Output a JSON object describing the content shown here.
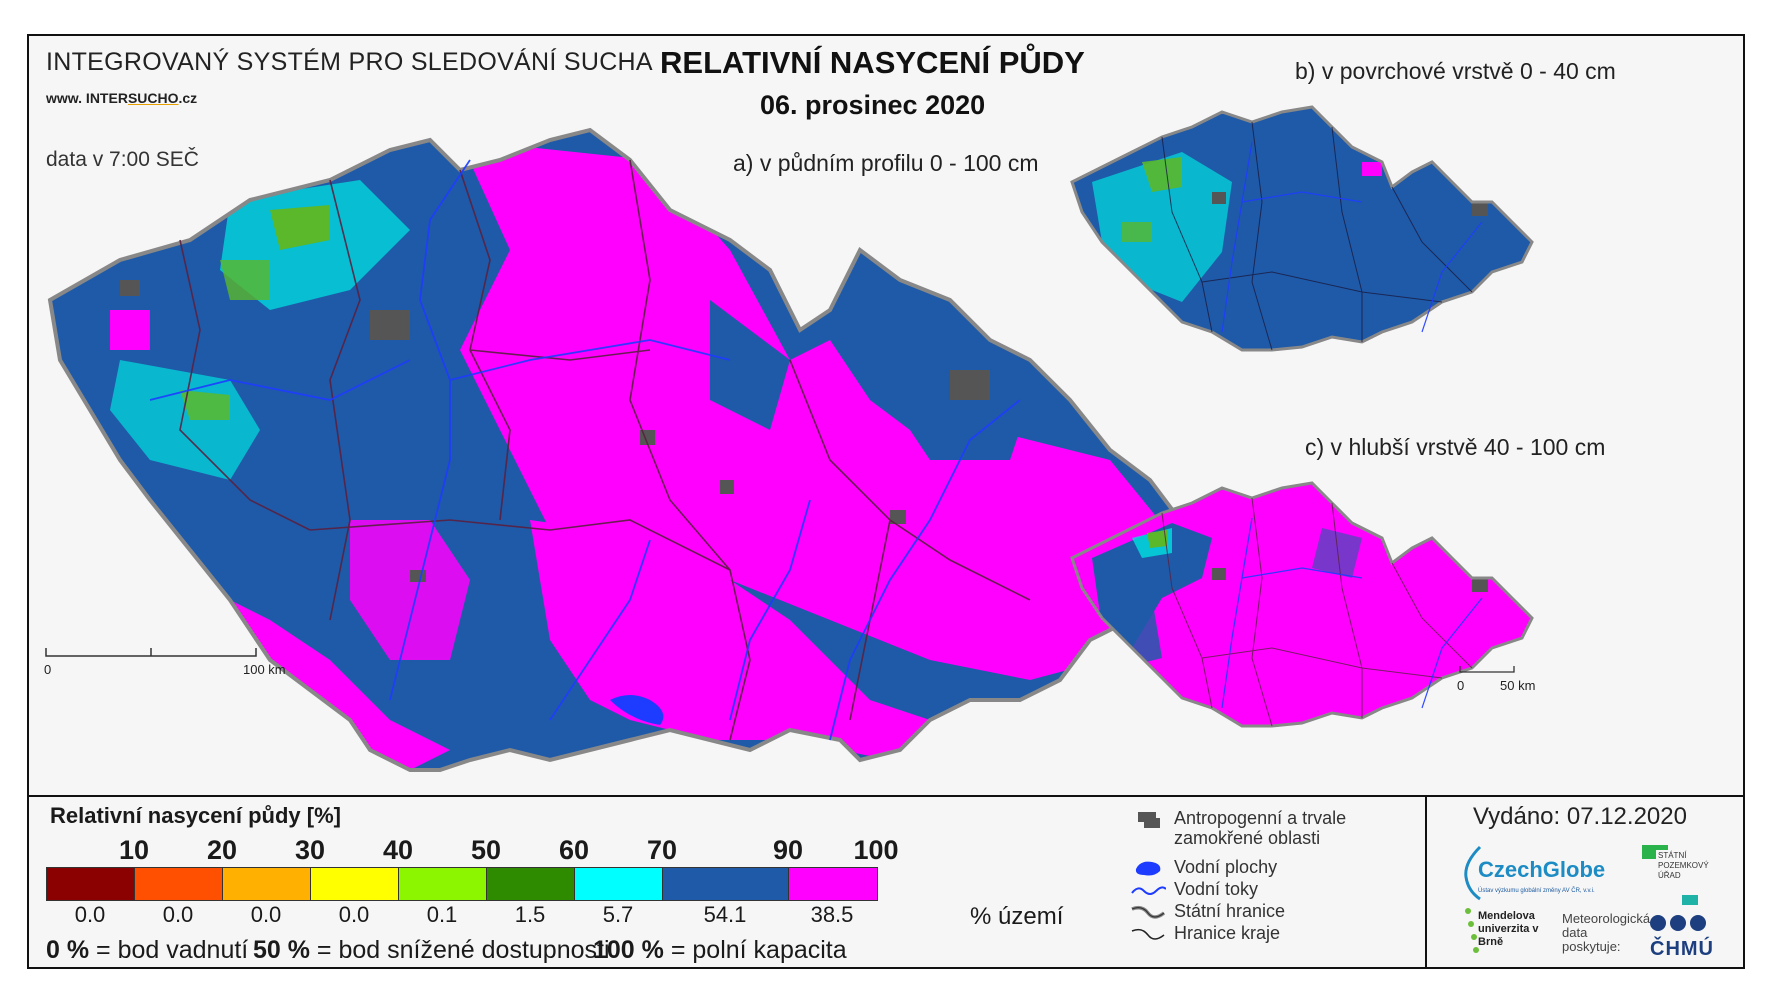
{
  "header": {
    "system_title": "INTEGROVANÝ SYSTÉM PRO SLEDOVÁNÍ SUCHA",
    "url_prefix": "www. INTER",
    "url_underlined": "SUCHO",
    "url_suffix": ".cz",
    "data_time": "data v 7:00 SEČ",
    "title": "RELATIVNÍ NASYCENÍ PŮDY",
    "date": "06. prosinec 2020"
  },
  "maps": {
    "a_label": "a) v půdním profilu 0 - 100 cm",
    "b_label": "b) v povrchové vrstvě 0 - 40 cm",
    "c_label": "c) v hlubší vrstvě 40 - 100 cm",
    "scale_main": {
      "zero": "0",
      "end": "100 km"
    },
    "scale_small": {
      "zero": "0",
      "end": "50 km"
    }
  },
  "legend": {
    "title": "Relativní nasycení půdy [%]",
    "thresholds": [
      "10",
      "20",
      "30",
      "40",
      "50",
      "60",
      "70",
      "90",
      "100"
    ],
    "classes": [
      {
        "color": "#8b0000",
        "share": "0.0"
      },
      {
        "color": "#ff4f00",
        "share": "0.0"
      },
      {
        "color": "#ffb000",
        "share": "0.0"
      },
      {
        "color": "#ffff00",
        "share": "0.0"
      },
      {
        "color": "#8cf500",
        "share": "0.1"
      },
      {
        "color": "#2e8b00",
        "share": "1.5"
      },
      {
        "color": "#00ffff",
        "share": "5.7"
      },
      {
        "color": "#1e5aa8",
        "share": "54.1"
      },
      {
        "color": "#ff00ff",
        "share": "38.5"
      }
    ],
    "share_unit": "% území",
    "definitions": [
      {
        "bold": "0 %",
        "text": " = bod vadnutí"
      },
      {
        "bold": "50 %",
        "text": " = bod snížené dostupnosti"
      },
      {
        "bold": "100 %",
        "text": " = polní kapacita"
      }
    ]
  },
  "key": {
    "anthropogenic": "Antropogenní a trvale zamokřené oblasti",
    "water_bodies": "Vodní plochy",
    "rivers": "Vodní toky",
    "state_border": "Státní hranice",
    "region_border": "Hranice kraje"
  },
  "footer": {
    "issued": "Vydáno: 07.12.2020",
    "czechglobe": "CzechGlobe",
    "czechglobe_sub": "Ústav výzkumu globální změny AV ČR, v.v.i.",
    "spu": "STÁTNÍ POZEMKOVÝ ÚŘAD",
    "mendel": "Mendelova univerzita v Brně",
    "meteo": "Meteorologická data poskytuje:",
    "chmu": "ČHMÚ"
  },
  "colors": {
    "magenta": "#ff00ff",
    "blue": "#1e5aa8",
    "cyan": "#00ffff",
    "green": "#2e8b00",
    "gray": "#555555",
    "river": "#1e3cff"
  }
}
